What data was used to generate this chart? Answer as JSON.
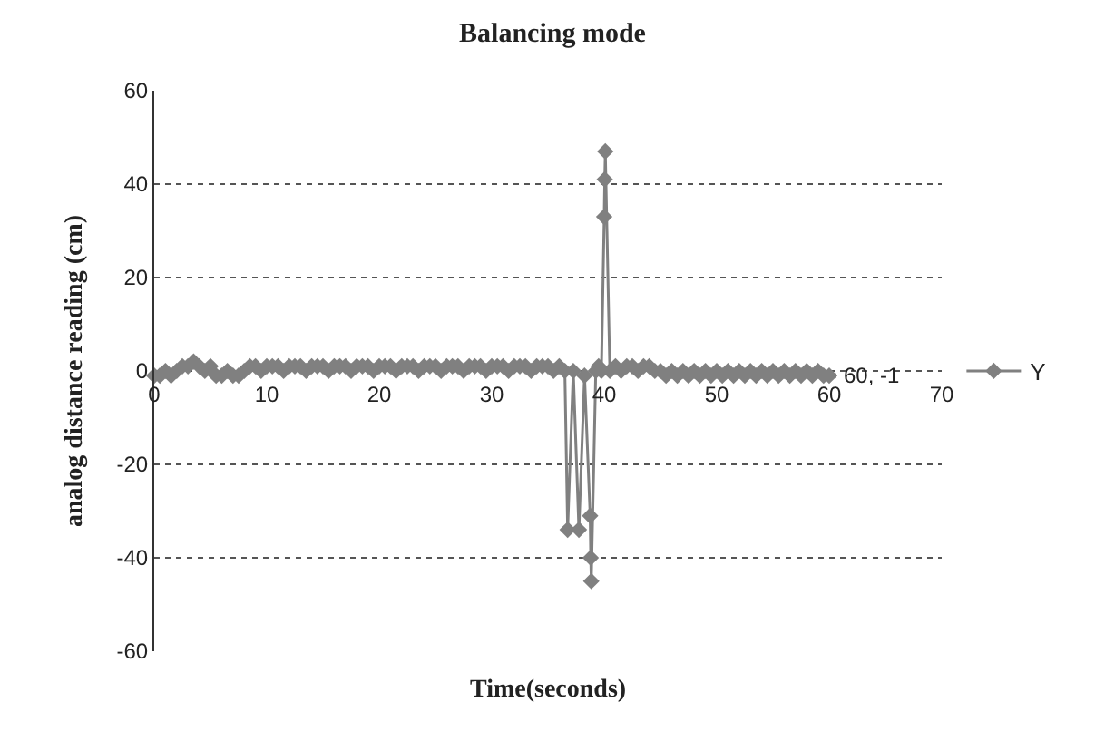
{
  "chart_data": {
    "type": "line",
    "title": "Balancing mode",
    "xlabel": "Time(seconds)",
    "ylabel": "analog distance reading (cm)",
    "xlim": [
      0,
      70
    ],
    "xticks": [
      0,
      10,
      20,
      30,
      40,
      50,
      60,
      70
    ],
    "ylim": [
      -60,
      60
    ],
    "yticks": [
      -60,
      -40,
      -20,
      0,
      20,
      40,
      60
    ],
    "grid": "y",
    "legend": "right",
    "marker": "diamond",
    "line_style": "solid",
    "annotations": [
      {
        "text": "60, -1",
        "x": 60,
        "y": -1
      }
    ],
    "series": [
      {
        "name": "Y",
        "color": "#808080",
        "x": [
          0,
          0.5,
          1,
          1.5,
          2,
          2.5,
          3,
          3.5,
          4,
          4.5,
          5,
          5.5,
          6,
          6.5,
          7,
          7.5,
          8,
          8.5,
          9,
          9.5,
          10,
          10.5,
          11,
          11.5,
          12,
          12.5,
          13,
          13.5,
          14,
          14.5,
          15,
          15.5,
          16,
          16.5,
          17,
          17.5,
          18,
          18.5,
          19,
          19.5,
          20,
          20.5,
          21,
          21.5,
          22,
          22.5,
          23,
          23.5,
          24,
          24.5,
          25,
          25.5,
          26,
          26.5,
          27,
          27.5,
          28,
          28.5,
          29,
          29.5,
          30,
          30.5,
          31,
          31.5,
          32,
          32.5,
          33,
          33.5,
          34,
          34.5,
          35,
          35.5,
          36,
          36.5,
          36.75,
          37.25,
          37.75,
          38.25,
          38.75,
          38.8,
          38.85,
          39.25,
          39.5,
          39.75,
          40,
          40.05,
          40.1,
          40.5,
          41,
          41.5,
          42,
          42.5,
          43,
          43.5,
          44,
          44.5,
          45,
          45.5,
          46,
          46.5,
          47,
          47.5,
          48,
          48.5,
          49,
          49.5,
          50,
          50.5,
          51,
          51.5,
          52,
          52.5,
          53,
          53.5,
          54,
          54.5,
          55,
          55.5,
          56,
          56.5,
          57,
          57.5,
          58,
          58.5,
          59,
          59.5,
          60
        ],
        "values": [
          -1,
          -1,
          0,
          -1,
          0,
          1,
          1,
          2,
          1,
          0,
          1,
          -1,
          -1,
          0,
          -1,
          -1,
          0,
          1,
          1,
          0,
          1,
          1,
          1,
          0,
          1,
          1,
          1,
          0,
          1,
          1,
          1,
          0,
          1,
          1,
          1,
          0,
          1,
          1,
          1,
          0,
          1,
          1,
          1,
          0,
          1,
          1,
          1,
          0,
          1,
          1,
          1,
          0,
          1,
          1,
          1,
          0,
          1,
          1,
          1,
          0,
          1,
          1,
          1,
          0,
          1,
          1,
          1,
          0,
          1,
          1,
          1,
          0,
          1,
          0,
          -34,
          0,
          -34,
          -1,
          -31,
          -40,
          -45,
          0,
          1,
          0,
          33,
          41,
          47,
          0,
          1,
          0,
          1,
          1,
          0,
          1,
          1,
          0,
          0,
          -1,
          0,
          -1,
          0,
          -1,
          0,
          -1,
          0,
          -1,
          0,
          -1,
          0,
          -1,
          0,
          -1,
          0,
          -1,
          0,
          -1,
          0,
          -1,
          0,
          -1,
          0,
          -1,
          0,
          -1,
          0,
          -1,
          -1
        ]
      }
    ]
  }
}
